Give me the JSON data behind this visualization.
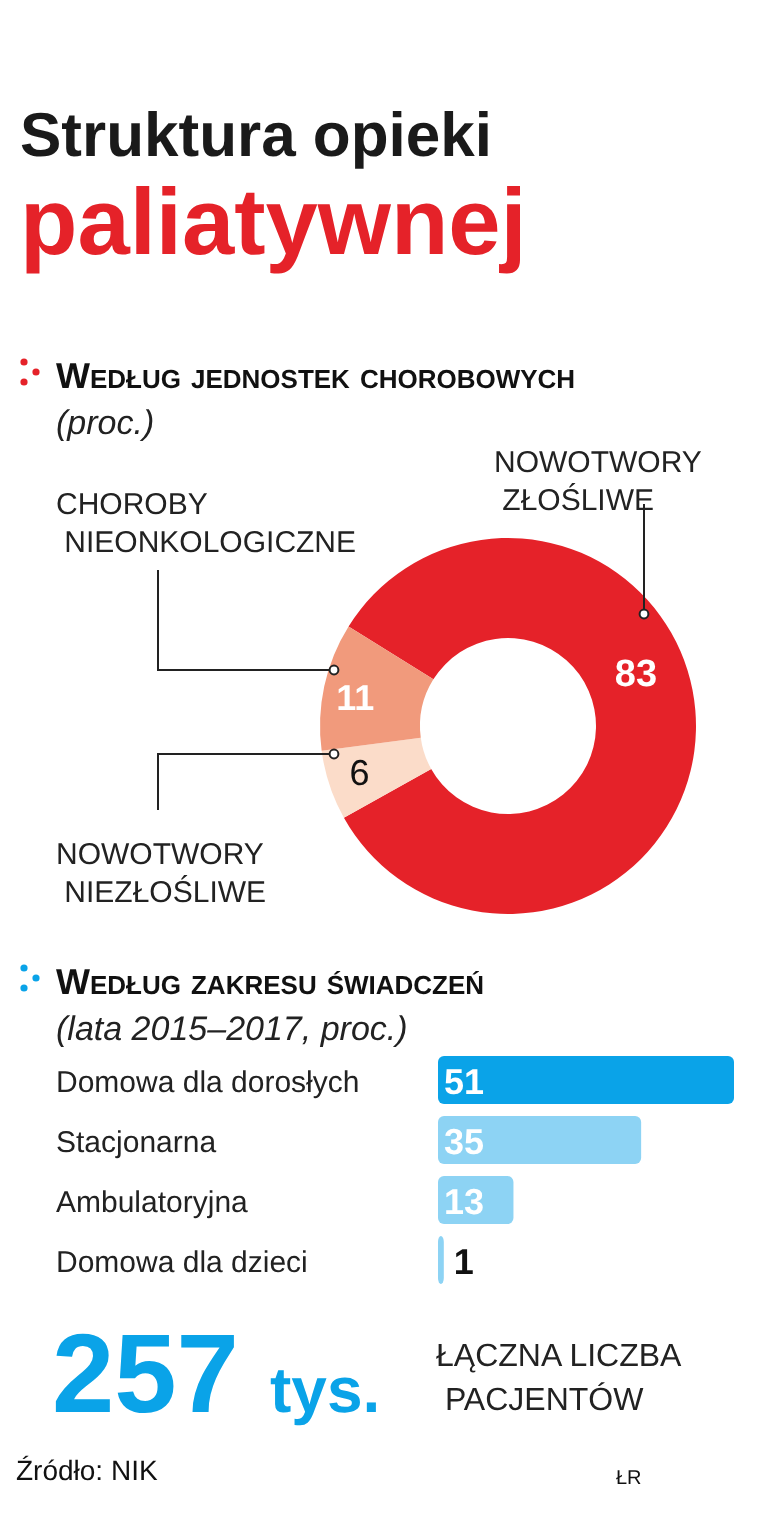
{
  "chart_data": [
    {
      "type": "donut",
      "title": "Struktura opieki paliatywnej",
      "subtitle": "Według jednostek chorobowych",
      "annotations": [
        "(proc.)"
      ],
      "categories": [
        "NOWOTWORY ZŁOŚLIWE",
        "NOWOTWORY NIEZŁOŚLIWE",
        "CHOROBY NIEONKOLOGICZNE"
      ],
      "values": [
        83,
        6,
        11
      ],
      "colors": [
        "#e52229",
        "#fbdcc9",
        "#f19a7c"
      ],
      "data_labels": true
    },
    {
      "type": "bar",
      "orientation": "horizontal",
      "title": "Według zakresu świadczeń",
      "subtitle": "(lata 2015–2017, proc.)",
      "categories": [
        "Domowa dla dorosłych",
        "Stacjonarna",
        "Ambulatoryjna",
        "Domowa dla dzieci"
      ],
      "values": [
        51,
        35,
        13,
        1
      ],
      "colors": [
        "#0aa3e8",
        "#8dd3f4",
        "#8dd3f4",
        "#8dd3f4"
      ],
      "data_labels": true
    },
    {
      "type": "other",
      "annotations": [
        "257 tys.",
        "ŁĄCZNA LICZBA PACJENTÓW",
        "Źródło: NIK",
        "ŁR"
      ]
    }
  ]
}
